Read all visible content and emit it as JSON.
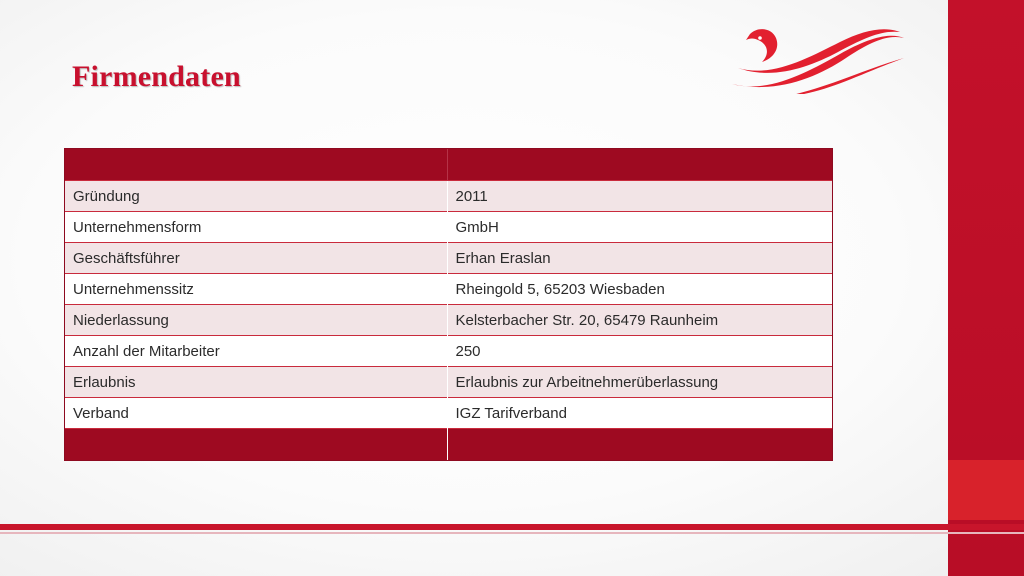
{
  "slide": {
    "title": "Firmendaten",
    "logo": "bird-wave-logo-icon",
    "colors": {
      "accent": "#c8102e",
      "table_header": "#9e0a21",
      "row_tint": "#f2e4e6"
    }
  },
  "table": {
    "header": [
      "",
      ""
    ],
    "rows": [
      {
        "label": "Gründung",
        "value": "2011"
      },
      {
        "label": "Unternehmensform",
        "value": "GmbH"
      },
      {
        "label": "Geschäftsführer",
        "value": "Erhan Eraslan"
      },
      {
        "label": "Unternehmenssitz",
        "value": "Rheingold 5, 65203 Wiesbaden"
      },
      {
        "label": "Niederlassung",
        "value": "Kelsterbacher Str. 20, 65479 Raunheim"
      },
      {
        "label": "Anzahl der Mitarbeiter",
        "value": "250"
      },
      {
        "label": "Erlaubnis",
        "value": "Erlaubnis zur Arbeitnehmerüberlassung"
      },
      {
        "label": "Verband",
        "value": "IGZ Tarifverband"
      }
    ],
    "footer": [
      "",
      ""
    ]
  }
}
